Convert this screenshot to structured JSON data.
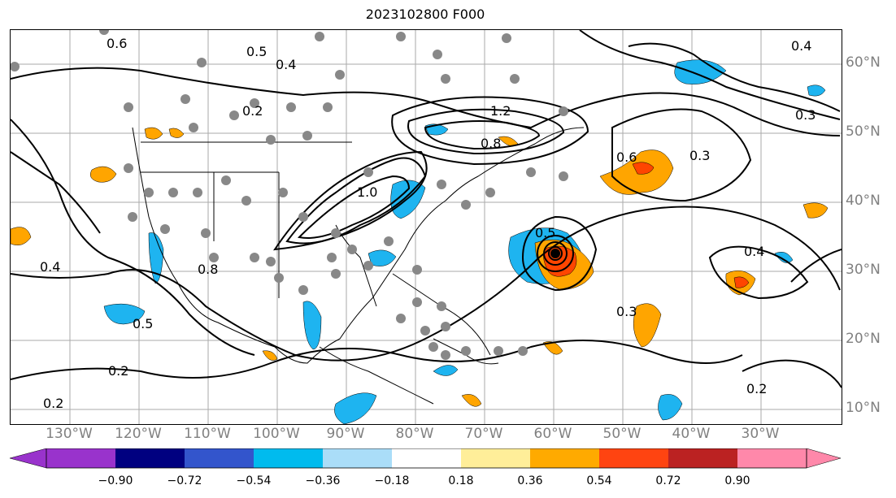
{
  "title": "2023102800 F000",
  "lat_labels": [
    "60°N",
    "50°N",
    "40°N",
    "30°N",
    "20°N",
    "10°N"
  ],
  "lon_labels": [
    "130°W",
    "120°W",
    "110°W",
    "100°W",
    "90°W",
    "80°W",
    "70°W",
    "60°W",
    "50°W",
    "40°W",
    "30°W"
  ],
  "contour_labels": [
    "0.6",
    "0.5",
    "0.4",
    "0.2",
    "1.2",
    "1.0",
    "0.8",
    "0.6",
    "0.4",
    "0.3",
    "0.5",
    "0.4",
    "0.2",
    "0.3",
    "0.2",
    "0.2",
    "0.5",
    "0.8",
    "0.3",
    "0.4"
  ],
  "colorbar": {
    "ticks": [
      "−0.90",
      "−0.72",
      "−0.54",
      "−0.36",
      "−0.18",
      "0.18",
      "0.36",
      "0.54",
      "0.72",
      "0.90"
    ],
    "colors": [
      "#9933cc",
      "#000080",
      "#3355cc",
      "#00bbee",
      "#aaddf8",
      "#ffffff",
      "#ffee99",
      "#ffaa00",
      "#ff4411",
      "#bb2222",
      "#ff88aa"
    ]
  },
  "colors": {
    "positive": "#ffa500",
    "strong_positive": "#ff4500",
    "negative": "#1eb4f0",
    "station": "#888888",
    "contour": "#000000"
  }
}
